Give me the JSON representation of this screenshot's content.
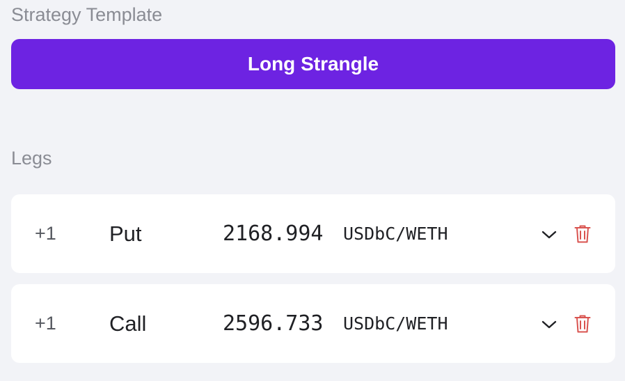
{
  "strategy": {
    "section_label": "Strategy Template",
    "template_name": "Long Strangle",
    "accent_color": "#6d23e2"
  },
  "legs": {
    "section_label": "Legs",
    "items": [
      {
        "quantity": "+1",
        "type": "Put",
        "strike": "2168.994",
        "unit": "USDbC/WETH",
        "expand_icon": "chevron-down-icon",
        "delete_icon": "trash-icon"
      },
      {
        "quantity": "+1",
        "type": "Call",
        "strike": "2596.733",
        "unit": "USDbC/WETH",
        "expand_icon": "chevron-down-icon",
        "delete_icon": "trash-icon"
      }
    ],
    "delete_color": "#d9534f"
  }
}
